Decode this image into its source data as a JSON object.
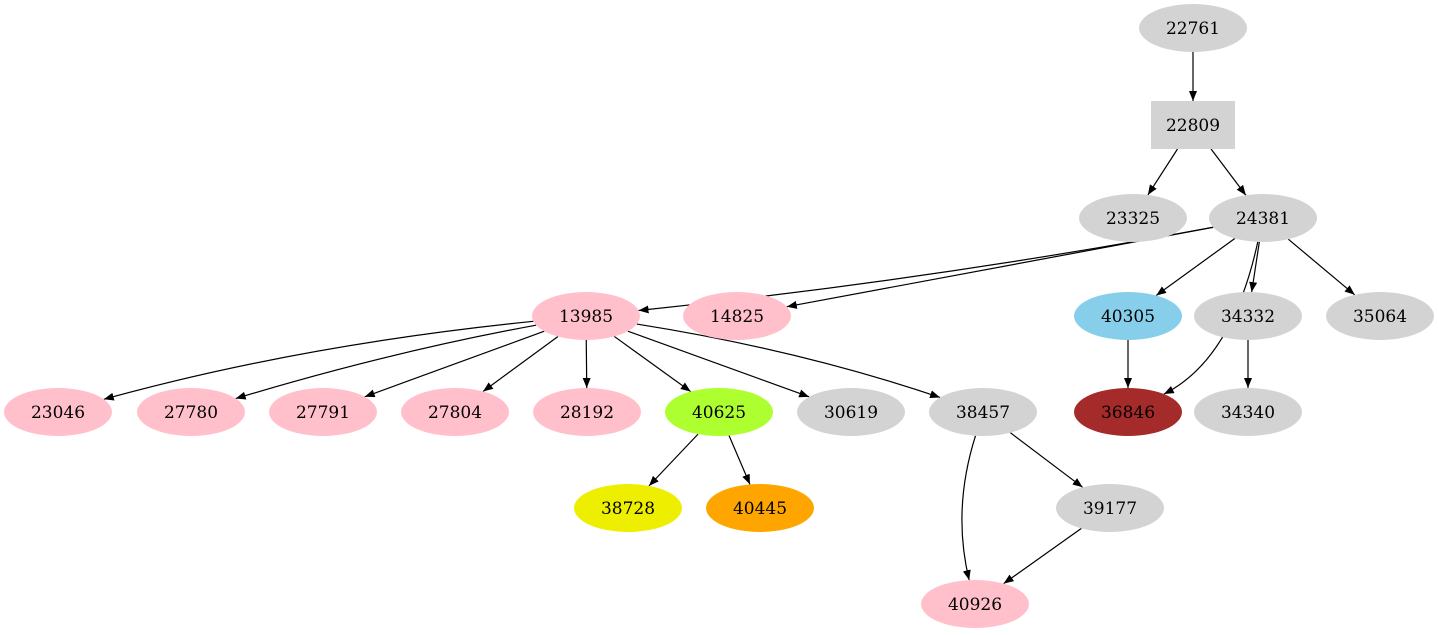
{
  "colors": {
    "default": "#d3d3d3",
    "pink": "#ffc0cb",
    "skyblue": "#87ceeb",
    "greenyellow": "#adff2f",
    "yellow": "#eeee00",
    "orange": "#ffa500",
    "brown": "#a52a2a",
    "edge": "#000000"
  },
  "nodes": [
    {
      "id": "22761",
      "color": "default",
      "shape": "ellipse"
    },
    {
      "id": "22809",
      "color": "default",
      "shape": "box"
    },
    {
      "id": "23325",
      "color": "default",
      "shape": "ellipse"
    },
    {
      "id": "24381",
      "color": "default",
      "shape": "ellipse"
    },
    {
      "id": "13985",
      "color": "pink",
      "shape": "ellipse"
    },
    {
      "id": "14825",
      "color": "pink",
      "shape": "ellipse"
    },
    {
      "id": "40305",
      "color": "skyblue",
      "shape": "ellipse"
    },
    {
      "id": "34332",
      "color": "default",
      "shape": "ellipse"
    },
    {
      "id": "35064",
      "color": "default",
      "shape": "ellipse"
    },
    {
      "id": "23046",
      "color": "pink",
      "shape": "ellipse"
    },
    {
      "id": "27780",
      "color": "pink",
      "shape": "ellipse"
    },
    {
      "id": "27791",
      "color": "pink",
      "shape": "ellipse"
    },
    {
      "id": "27804",
      "color": "pink",
      "shape": "ellipse"
    },
    {
      "id": "28192",
      "color": "pink",
      "shape": "ellipse"
    },
    {
      "id": "40625",
      "color": "greenyellow",
      "shape": "ellipse"
    },
    {
      "id": "30619",
      "color": "default",
      "shape": "ellipse"
    },
    {
      "id": "38457",
      "color": "default",
      "shape": "ellipse"
    },
    {
      "id": "36846",
      "color": "brown",
      "shape": "ellipse"
    },
    {
      "id": "34340",
      "color": "default",
      "shape": "ellipse"
    },
    {
      "id": "38728",
      "color": "yellow",
      "shape": "ellipse"
    },
    {
      "id": "40445",
      "color": "orange",
      "shape": "ellipse"
    },
    {
      "id": "39177",
      "color": "default",
      "shape": "ellipse"
    },
    {
      "id": "40926",
      "color": "pink",
      "shape": "ellipse"
    }
  ],
  "edges": [
    [
      "22761",
      "22809"
    ],
    [
      "22809",
      "23325"
    ],
    [
      "22809",
      "24381"
    ],
    [
      "24381",
      "13985"
    ],
    [
      "24381",
      "14825"
    ],
    [
      "24381",
      "36846"
    ],
    [
      "24381",
      "40305"
    ],
    [
      "24381",
      "34332"
    ],
    [
      "24381",
      "35064"
    ],
    [
      "13985",
      "23046"
    ],
    [
      "13985",
      "27780"
    ],
    [
      "13985",
      "27791"
    ],
    [
      "13985",
      "27804"
    ],
    [
      "13985",
      "28192"
    ],
    [
      "13985",
      "40625"
    ],
    [
      "13985",
      "30619"
    ],
    [
      "13985",
      "38457"
    ],
    [
      "40305",
      "36846"
    ],
    [
      "34332",
      "34340"
    ],
    [
      "40625",
      "38728"
    ],
    [
      "40625",
      "40445"
    ],
    [
      "38457",
      "40926"
    ],
    [
      "38457",
      "39177"
    ],
    [
      "39177",
      "40926"
    ]
  ]
}
